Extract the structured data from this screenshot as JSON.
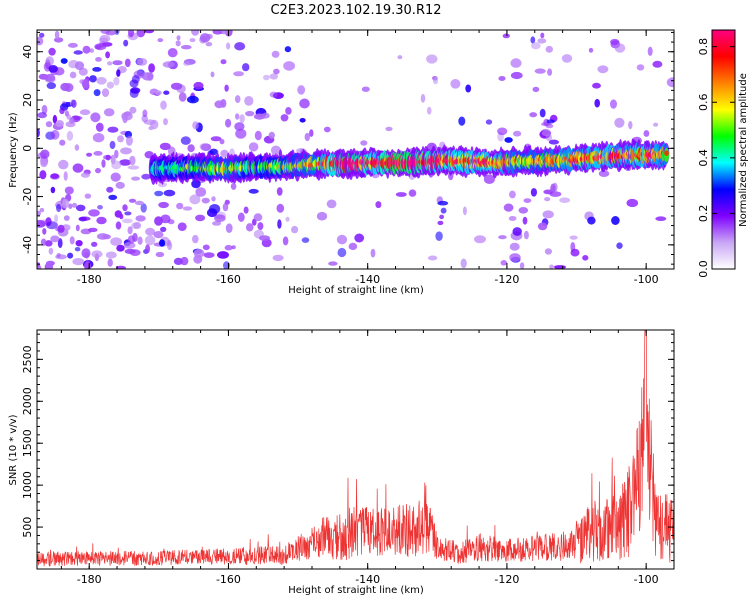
{
  "page": {
    "title": "C2E3.2023.102.19.30.R12"
  },
  "chart_data": [
    {
      "type": "heatmap",
      "title": "C2E3.2023.102.19.30.R12",
      "xlabel": "Height of straight line (km)",
      "ylabel": "Frequency (Hz)",
      "xlim": [
        -187.5,
        -96
      ],
      "ylim": [
        -50,
        49
      ],
      "xticks": [
        -180,
        -160,
        -140,
        -120,
        -100
      ],
      "yticks": [
        -40,
        -20,
        0,
        20,
        40
      ],
      "colorbar": {
        "label": "Normalized spectral amplitude",
        "range": [
          0,
          0.86
        ],
        "ticks": [
          0.0,
          0.2,
          0.4,
          0.6,
          0.8
        ],
        "colormap": [
          "#ffffff",
          "#c9a6f5",
          "#7f00ff",
          "#0000ff",
          "#00ffff",
          "#00ff00",
          "#ffff00",
          "#ff8000",
          "#ff0000",
          "#ff0080"
        ]
      },
      "signal_band": [
        {
          "x": -171,
          "freq": -8.5,
          "amp": 0.25
        },
        {
          "x": -165,
          "freq": -8,
          "amp": 0.32
        },
        {
          "x": -160,
          "freq": -8.5,
          "amp": 0.4
        },
        {
          "x": -157,
          "freq": -8,
          "amp": 0.3
        },
        {
          "x": -152,
          "freq": -7.5,
          "amp": 0.35
        },
        {
          "x": -147,
          "freq": -6.5,
          "amp": 0.45
        },
        {
          "x": -143,
          "freq": -6.5,
          "amp": 0.75
        },
        {
          "x": -139,
          "freq": -6,
          "amp": 0.55
        },
        {
          "x": -136,
          "freq": -6,
          "amp": 0.8
        },
        {
          "x": -133,
          "freq": -6,
          "amp": 0.7
        },
        {
          "x": -129,
          "freq": -5,
          "amp": 0.6
        },
        {
          "x": -125,
          "freq": -5.5,
          "amp": 0.55
        },
        {
          "x": -122,
          "freq": -6,
          "amp": 0.55
        },
        {
          "x": -118,
          "freq": -5.5,
          "amp": 0.4
        },
        {
          "x": -113,
          "freq": -5,
          "amp": 0.45
        },
        {
          "x": -110,
          "freq": -4.5,
          "amp": 0.5
        },
        {
          "x": -106,
          "freq": -3.5,
          "amp": 0.55
        },
        {
          "x": -103,
          "freq": -3,
          "amp": 0.5
        },
        {
          "x": -100,
          "freq": -3,
          "amp": 0.55
        },
        {
          "x": -97,
          "freq": -2.5,
          "amp": 0.45
        }
      ]
    },
    {
      "type": "line",
      "xlabel": "Height of straight line (km)",
      "ylabel": "SNR (10 * v/v)",
      "xlim": [
        -187.5,
        -96
      ],
      "ylim": [
        0,
        2850
      ],
      "xticks": [
        -180,
        -160,
        -140,
        -120,
        -100
      ],
      "yticks": [
        500,
        1000,
        1500,
        2000,
        2500
      ],
      "series_color": "#ee3333",
      "envelope": [
        {
          "x": -187.5,
          "base": 120,
          "spread": 90
        },
        {
          "x": -170,
          "base": 130,
          "spread": 90
        },
        {
          "x": -160,
          "base": 150,
          "spread": 100
        },
        {
          "x": -152,
          "base": 170,
          "spread": 120
        },
        {
          "x": -149,
          "base": 280,
          "spread": 180
        },
        {
          "x": -146,
          "base": 380,
          "spread": 260
        },
        {
          "x": -143,
          "base": 420,
          "spread": 320
        },
        {
          "x": -140,
          "base": 450,
          "spread": 300
        },
        {
          "x": -137,
          "base": 460,
          "spread": 300
        },
        {
          "x": -134,
          "base": 460,
          "spread": 320
        },
        {
          "x": -131,
          "base": 520,
          "spread": 340
        },
        {
          "x": -130,
          "base": 240,
          "spread": 130
        },
        {
          "x": -127,
          "base": 200,
          "spread": 140
        },
        {
          "x": -124,
          "base": 260,
          "spread": 170
        },
        {
          "x": -120,
          "base": 220,
          "spread": 140
        },
        {
          "x": -115,
          "base": 250,
          "spread": 160
        },
        {
          "x": -111,
          "base": 280,
          "spread": 180
        },
        {
          "x": -108,
          "base": 420,
          "spread": 380
        },
        {
          "x": -105,
          "base": 500,
          "spread": 420
        },
        {
          "x": -103,
          "base": 600,
          "spread": 500
        },
        {
          "x": -101.5,
          "base": 900,
          "spread": 700
        },
        {
          "x": -100.6,
          "base": 1500,
          "spread": 900
        },
        {
          "x": -100.1,
          "base": 2400,
          "spread": 500
        },
        {
          "x": -99.6,
          "base": 1300,
          "spread": 800
        },
        {
          "x": -98.5,
          "base": 550,
          "spread": 450
        },
        {
          "x": -96,
          "base": 450,
          "spread": 400
        }
      ]
    }
  ]
}
